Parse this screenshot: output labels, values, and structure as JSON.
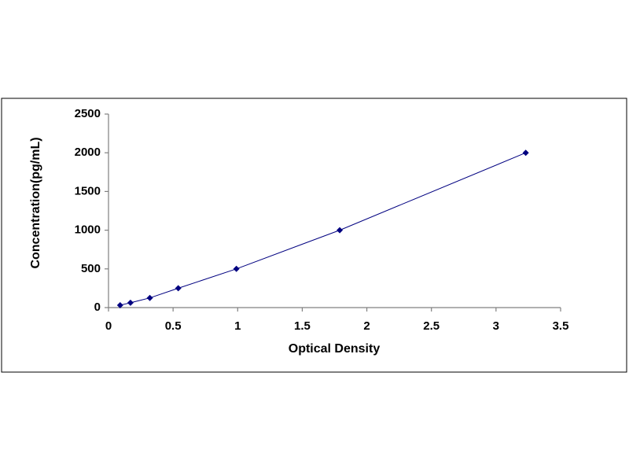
{
  "chart_data": {
    "type": "scatter",
    "x_label": "Optical Density",
    "y_label": "Concentration(pg/mL)",
    "series": [
      {
        "color": "#000080",
        "x": [
          0.09,
          0.17,
          0.32,
          0.54,
          0.99,
          1.79,
          3.23
        ],
        "values": [
          31,
          62.5,
          125,
          250,
          500,
          1000,
          2000
        ]
      }
    ],
    "xlim": [
      0,
      3.5
    ],
    "xticks": [
      0,
      0.5,
      1,
      1.5,
      2,
      2.5,
      3,
      3.5
    ],
    "ylim": [
      0,
      2500
    ],
    "yticks": [
      0,
      500,
      1000,
      1500,
      2000,
      2500
    ]
  }
}
